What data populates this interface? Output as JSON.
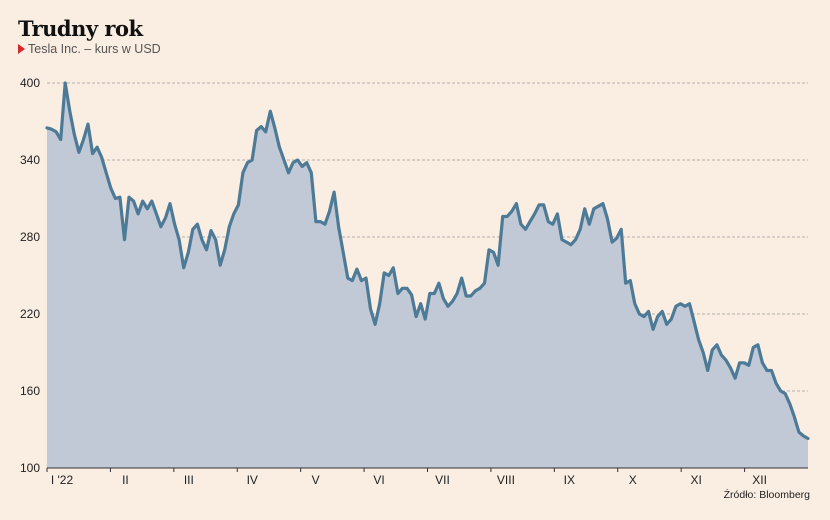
{
  "header": {
    "title": "Trudny rok",
    "subtitle": "Tesla Inc. – kurs w USD"
  },
  "source": "Źródło: Bloomberg",
  "colors": {
    "background": "#faeee2",
    "line": "#4d7a96",
    "area": "#c1c8d6",
    "marker": "#d8282c",
    "grid": "#9a9a9a"
  },
  "chart_data": {
    "type": "area",
    "title": "Trudny rok",
    "subtitle": "Tesla Inc. – kurs w USD",
    "xlabel": "",
    "ylabel": "",
    "ylim": [
      100,
      400
    ],
    "yticks": [
      100,
      160,
      220,
      280,
      340,
      400
    ],
    "grid": true,
    "x_tick_labels": [
      "I '22",
      "II",
      "III",
      "IV",
      "V",
      "VI",
      "VII",
      "VIII",
      "IX",
      "X",
      "XI",
      "XII"
    ],
    "series": [
      {
        "values": [
          365,
          364,
          362,
          356,
          400,
          378,
          360,
          346,
          356,
          368,
          345,
          350,
          342,
          330,
          318,
          310,
          311,
          278,
          311,
          308,
          298,
          308,
          302,
          308,
          298,
          288,
          295,
          306,
          290,
          278,
          256,
          268,
          286,
          290,
          278,
          270,
          285,
          278,
          258,
          270,
          288,
          298,
          305,
          330,
          338,
          340,
          363,
          366,
          362,
          378,
          365,
          350,
          340,
          330,
          338,
          340,
          335,
          338,
          330,
          292,
          292,
          290,
          300,
          315,
          288,
          268,
          248,
          246,
          255,
          246,
          248,
          224,
          212,
          228,
          252,
          250,
          256,
          236,
          240,
          240,
          235,
          218,
          228,
          216,
          236,
          236,
          244,
          232,
          226,
          230,
          236,
          248,
          234,
          234,
          238,
          240,
          244,
          270,
          268,
          258,
          296,
          296,
          300,
          306,
          290,
          286,
          292,
          298,
          305,
          305,
          292,
          290,
          298,
          278,
          276,
          274,
          278,
          286,
          302,
          290,
          302,
          304,
          306,
          294,
          276,
          279,
          286,
          244,
          246,
          228,
          220,
          218,
          222,
          208,
          218,
          222,
          212,
          216,
          226,
          228,
          226,
          228,
          214,
          200,
          190,
          176,
          192,
          196,
          188,
          184,
          178,
          170,
          182,
          182,
          180,
          194,
          196,
          182,
          176,
          176,
          166,
          160,
          158,
          150,
          140,
          128,
          125,
          123
        ]
      }
    ]
  }
}
